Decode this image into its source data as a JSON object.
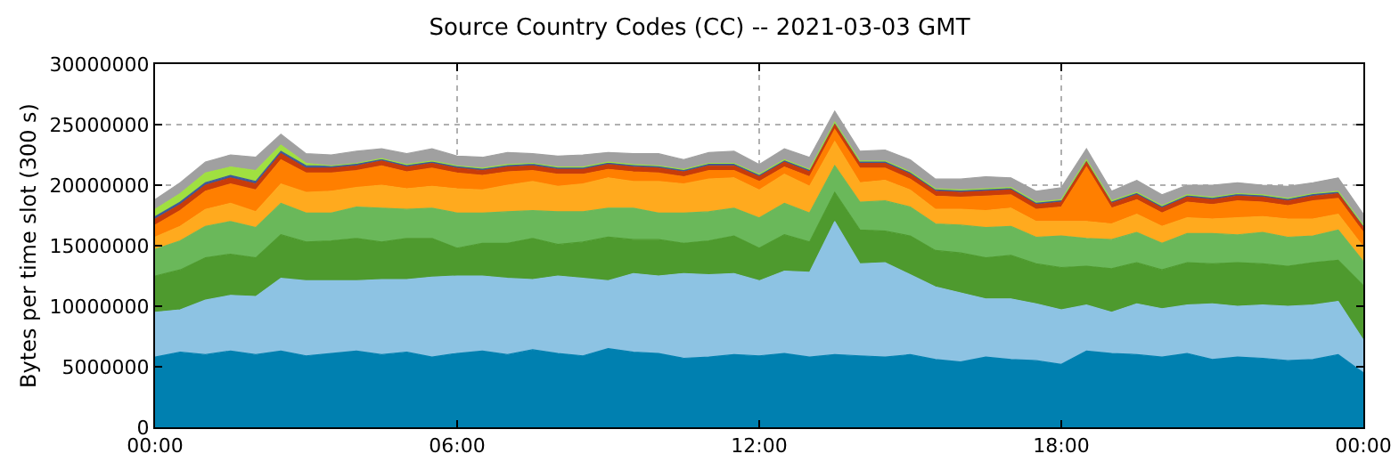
{
  "chart_data": {
    "type": "area",
    "stacked": true,
    "title": "Source Country Codes (CC) -- 2021-03-03 GMT",
    "ylabel": "Bytes per time slot (300 s)",
    "x": [
      0,
      0.5,
      1,
      1.5,
      2,
      2.5,
      3,
      3.5,
      4,
      4.5,
      5,
      5.5,
      6,
      6.5,
      7,
      7.5,
      8,
      8.5,
      9,
      9.5,
      10,
      10.5,
      11,
      11.5,
      12,
      12.5,
      13,
      13.5,
      14,
      14.5,
      15,
      15.5,
      16,
      16.5,
      17,
      17.5,
      18,
      18.5,
      19,
      19.5,
      20,
      20.5,
      21,
      21.5,
      22,
      22.5,
      23,
      23.5,
      24
    ],
    "xlim": [
      0,
      24
    ],
    "xticks": [
      {
        "value": 0,
        "label": "00:00"
      },
      {
        "value": 6,
        "label": "06:00"
      },
      {
        "value": 12,
        "label": "12:00"
      },
      {
        "value": 18,
        "label": "18:00"
      },
      {
        "value": 24,
        "label": "00:00"
      }
    ],
    "ylim": [
      0,
      30000000
    ],
    "yticks": [
      0,
      5000000,
      10000000,
      15000000,
      20000000,
      25000000,
      30000000
    ],
    "grid": true,
    "series": [
      {
        "color": "#0080b0",
        "values": [
          5800000,
          6200000,
          6000000,
          6300000,
          6000000,
          6300000,
          5900000,
          6100000,
          6300000,
          6000000,
          6200000,
          5800000,
          6100000,
          6300000,
          6000000,
          6400000,
          6100000,
          5900000,
          6500000,
          6200000,
          6100000,
          5700000,
          5800000,
          6000000,
          5900000,
          6100000,
          5800000,
          6000000,
          5900000,
          5800000,
          6000000,
          5600000,
          5400000,
          5800000,
          5600000,
          5500000,
          5200000,
          6300000,
          6100000,
          6000000,
          5800000,
          6100000,
          5600000,
          5800000,
          5700000,
          5500000,
          5600000,
          6000000,
          4500000
        ]
      },
      {
        "color": "#8dc3e3",
        "values": [
          3700000,
          3500000,
          4500000,
          4600000,
          4800000,
          6000000,
          6200000,
          6000000,
          5800000,
          6200000,
          6000000,
          6600000,
          6400000,
          6200000,
          6300000,
          5800000,
          6400000,
          6400000,
          5600000,
          6500000,
          6400000,
          7000000,
          6800000,
          6700000,
          6200000,
          6800000,
          7000000,
          11000000,
          7600000,
          7800000,
          6600000,
          6000000,
          5700000,
          4800000,
          5000000,
          4700000,
          4500000,
          3800000,
          3400000,
          4200000,
          4000000,
          4000000,
          4600000,
          4200000,
          4400000,
          4500000,
          4500000,
          4400000,
          2700000
        ]
      },
      {
        "color": "#4e9a2e",
        "values": [
          3000000,
          3300000,
          3500000,
          3400000,
          3200000,
          3600000,
          3200000,
          3300000,
          3500000,
          3100000,
          3400000,
          3200000,
          2300000,
          2700000,
          2900000,
          3400000,
          2600000,
          3000000,
          3600000,
          2800000,
          3000000,
          2500000,
          2800000,
          3100000,
          2700000,
          3000000,
          2500000,
          2400000,
          2800000,
          2600000,
          3200000,
          3000000,
          3300000,
          3400000,
          3600000,
          3300000,
          3500000,
          3200000,
          3600000,
          3400000,
          3200000,
          3500000,
          3300000,
          3600000,
          3400000,
          3300000,
          3500000,
          3400000,
          4500000
        ]
      },
      {
        "color": "#6ab85a",
        "values": [
          2200000,
          2400000,
          2600000,
          2700000,
          2500000,
          2600000,
          2400000,
          2300000,
          2600000,
          2800000,
          2400000,
          2500000,
          2900000,
          2500000,
          2600000,
          2300000,
          2700000,
          2500000,
          2400000,
          2600000,
          2200000,
          2500000,
          2400000,
          2300000,
          2500000,
          2600000,
          2400000,
          2200000,
          2300000,
          2500000,
          2400000,
          2200000,
          2300000,
          2500000,
          2400000,
          2200000,
          2600000,
          2300000,
          2400000,
          2500000,
          2200000,
          2400000,
          2500000,
          2300000,
          2600000,
          2400000,
          2200000,
          2500000,
          2000000
        ]
      },
      {
        "color": "#ffaa1e",
        "values": [
          1000000,
          1200000,
          1400000,
          1500000,
          1300000,
          1600000,
          1700000,
          1800000,
          1600000,
          1900000,
          1700000,
          1800000,
          2000000,
          1900000,
          2200000,
          2400000,
          2100000,
          2300000,
          2500000,
          2200000,
          2600000,
          2400000,
          2700000,
          2500000,
          2300000,
          2400000,
          2200000,
          2000000,
          1600000,
          1700000,
          1400000,
          1200000,
          1300000,
          1400000,
          1500000,
          1300000,
          1200000,
          1400000,
          1300000,
          1500000,
          1400000,
          1300000,
          1200000,
          1400000,
          1300000,
          1500000,
          1400000,
          1300000,
          1200000
        ]
      },
      {
        "color": "#ff7f00",
        "values": [
          1000000,
          1300000,
          1500000,
          1600000,
          1800000,
          2000000,
          1600000,
          1500000,
          1400000,
          1600000,
          1400000,
          1500000,
          1300000,
          1200000,
          1100000,
          900000,
          1000000,
          800000,
          700000,
          800000,
          700000,
          600000,
          700000,
          600000,
          700000,
          600000,
          800000,
          1000000,
          1200000,
          1000000,
          900000,
          1100000,
          1000000,
          1200000,
          1100000,
          1000000,
          1200000,
          4500000,
          1300000,
          1200000,
          1100000,
          1300000,
          1200000,
          1400000,
          1200000,
          1100000,
          1500000,
          1300000,
          1200000
        ]
      },
      {
        "color": "#c83c0a",
        "values": [
          500000,
          500000,
          500000,
          500000,
          500000,
          500000,
          400000,
          400000,
          400000,
          400000,
          400000,
          400000,
          400000,
          400000,
          400000,
          400000,
          400000,
          400000,
          400000,
          400000,
          400000,
          400000,
          400000,
          400000,
          400000,
          400000,
          400000,
          400000,
          400000,
          400000,
          400000,
          400000,
          400000,
          400000,
          400000,
          400000,
          400000,
          400000,
          400000,
          400000,
          400000,
          400000,
          400000,
          400000,
          400000,
          400000,
          400000,
          400000,
          400000
        ]
      },
      {
        "color": "#3c5a9a",
        "values": [
          200000,
          200000,
          200000,
          200000,
          200000,
          200000,
          200000,
          200000,
          200000,
          200000,
          200000,
          200000,
          200000,
          200000,
          200000,
          200000,
          200000,
          200000,
          200000,
          200000,
          200000,
          200000,
          200000,
          200000,
          200000,
          200000,
          200000,
          200000,
          200000,
          200000,
          200000,
          200000,
          200000,
          200000,
          200000,
          200000,
          200000,
          200000,
          200000,
          200000,
          200000,
          200000,
          200000,
          200000,
          200000,
          200000,
          200000,
          200000,
          200000
        ]
      },
      {
        "color": "#a0e040",
        "values": [
          600000,
          700000,
          800000,
          700000,
          900000,
          500000,
          200000,
          0,
          0,
          0,
          0,
          0,
          0,
          0,
          0,
          0,
          0,
          0,
          0,
          0,
          0,
          0,
          0,
          0,
          0,
          0,
          0,
          0,
          0,
          0,
          0,
          0,
          0,
          0,
          0,
          0,
          0,
          0,
          0,
          0,
          0,
          0,
          0,
          0,
          0,
          0,
          0,
          0,
          0
        ]
      },
      {
        "color": "#a0a0a0",
        "values": [
          800000,
          900000,
          900000,
          1000000,
          1100000,
          900000,
          800000,
          900000,
          1000000,
          800000,
          900000,
          1000000,
          800000,
          900000,
          1000000,
          800000,
          900000,
          1000000,
          800000,
          900000,
          1000000,
          800000,
          900000,
          1000000,
          800000,
          900000,
          1000000,
          900000,
          800000,
          900000,
          1000000,
          800000,
          900000,
          1000000,
          800000,
          900000,
          1000000,
          900000,
          800000,
          1000000,
          900000,
          800000,
          1000000,
          900000,
          800000,
          1000000,
          900000,
          1100000,
          900000
        ]
      }
    ]
  }
}
